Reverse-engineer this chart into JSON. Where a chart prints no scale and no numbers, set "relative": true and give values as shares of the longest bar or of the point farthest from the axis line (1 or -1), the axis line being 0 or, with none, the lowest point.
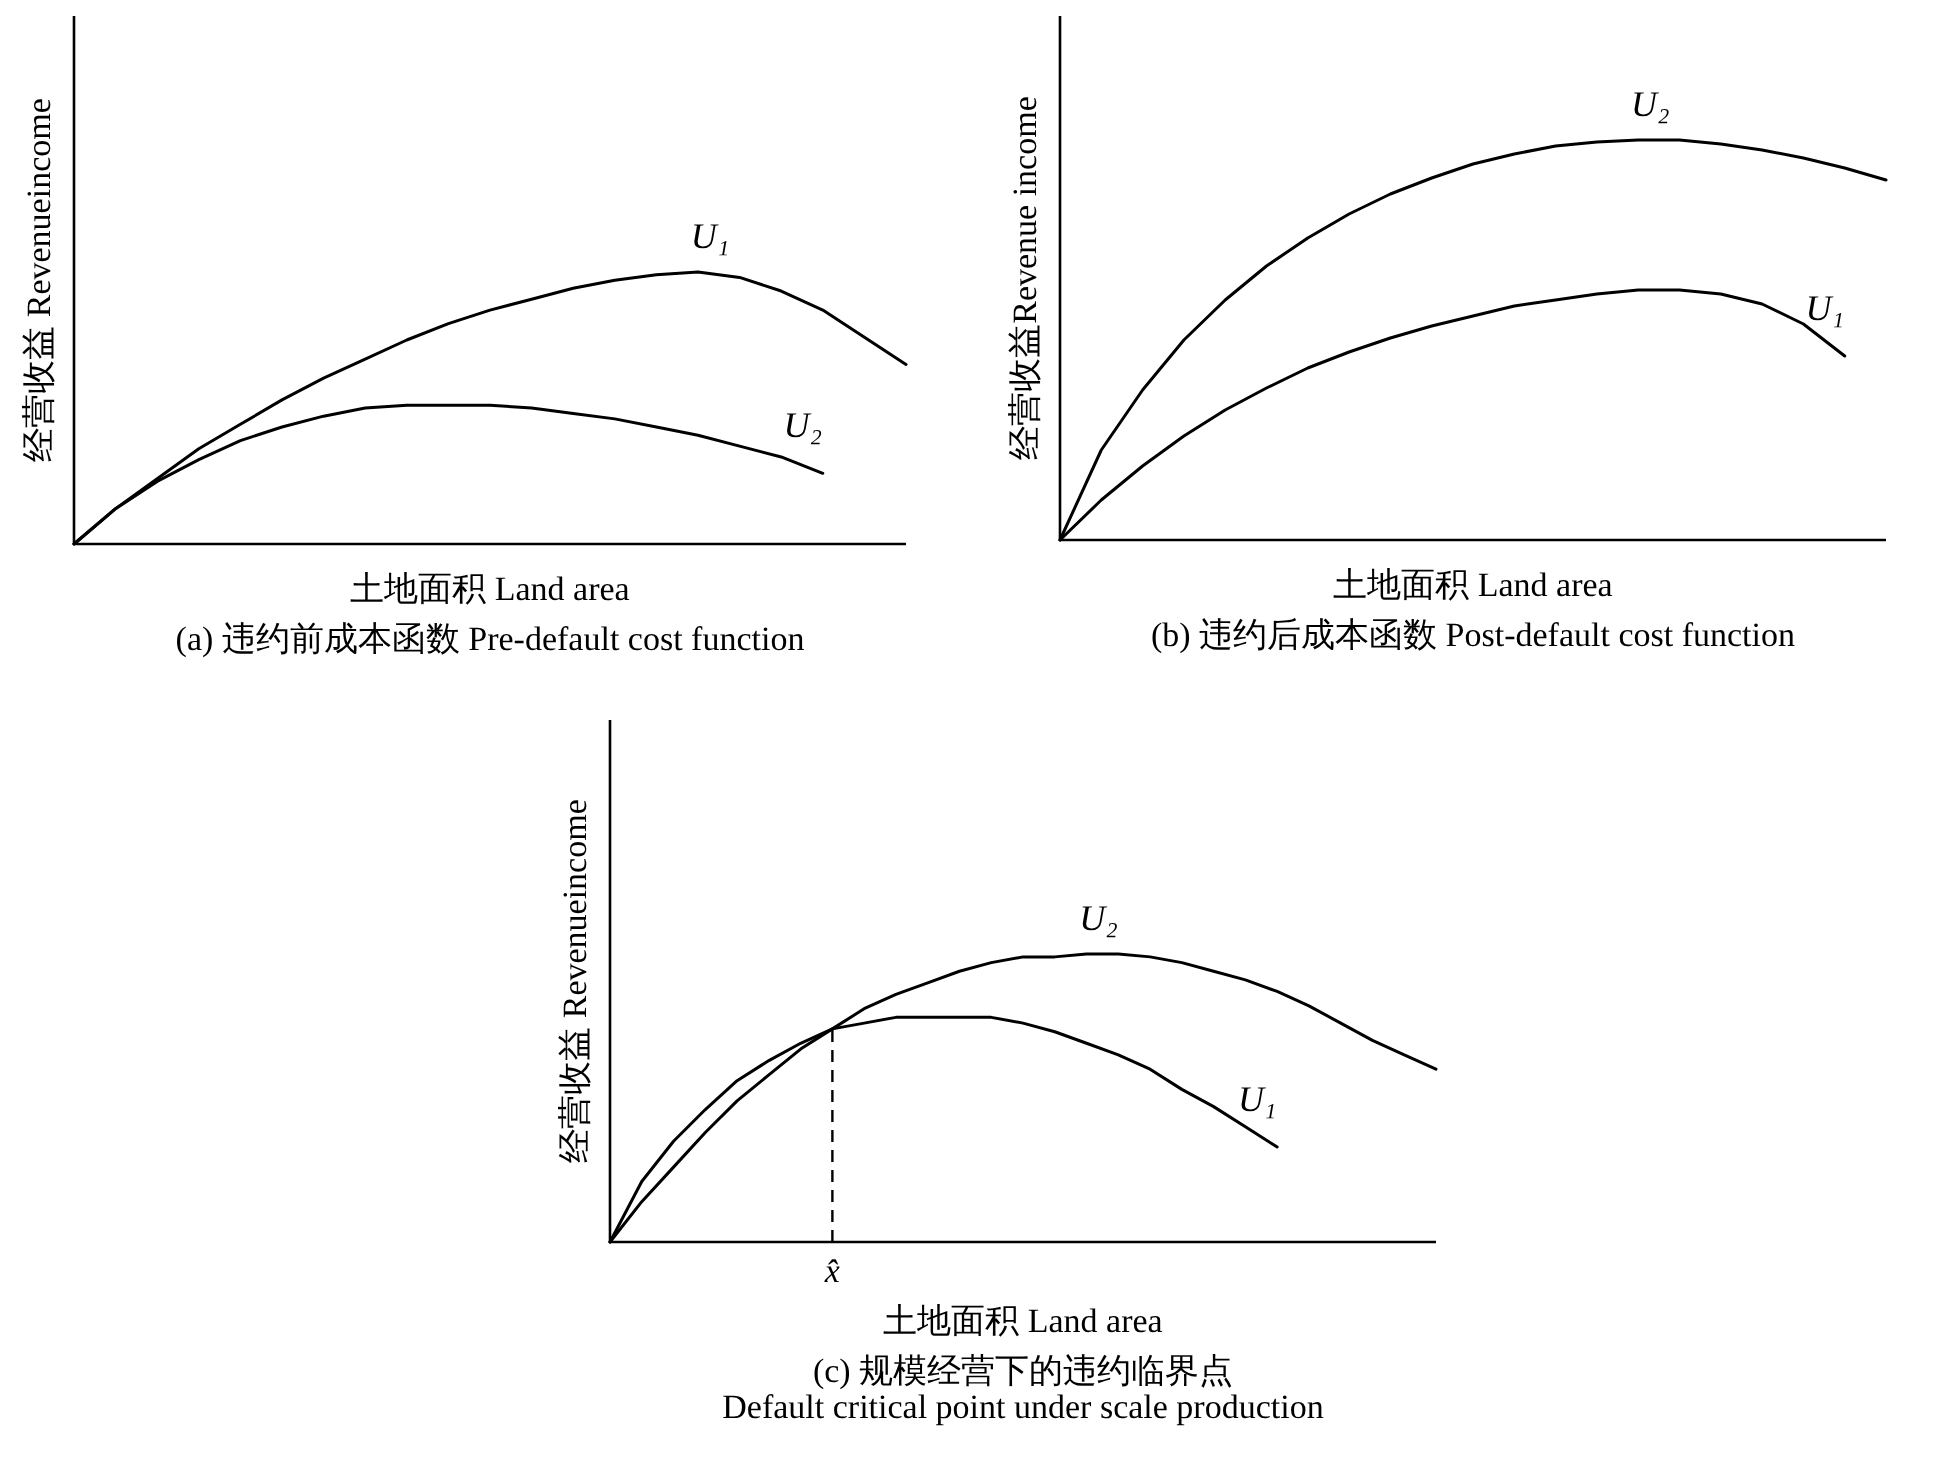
{
  "chart_data": [
    {
      "type": "line",
      "relative": true,
      "title": "(a) 违约前成本函数 Pre-default cost function",
      "xlabel": "土地面积 Land area",
      "ylabel": "经营收益 Revenueincome",
      "categories": [
        null,
        null,
        null,
        null,
        null,
        null,
        null,
        null,
        null,
        null,
        null,
        null,
        null,
        null,
        null,
        null,
        null,
        null,
        null,
        null,
        null
      ],
      "series": [
        {
          "name": "U₁",
          "color": "#000000",
          "values": [
            0,
            0.13,
            0.24,
            0.35,
            0.44,
            0.53,
            0.61,
            0.68,
            0.75,
            0.81,
            0.86,
            0.9,
            0.94,
            0.97,
            0.99,
            1,
            0.98,
            0.93,
            0.86,
            0.76,
            0.66
          ]
        },
        {
          "name": "U₂",
          "color": "#000000",
          "values": [
            0,
            0.13,
            0.23,
            0.31,
            0.38,
            0.43,
            0.47,
            0.5,
            0.51,
            0.51,
            0.51,
            0.5,
            0.48,
            0.46,
            0.43,
            0.4,
            0.36,
            0.32,
            0.26,
            null,
            null
          ]
        }
      ]
    },
    {
      "type": "line",
      "relative": true,
      "title": "(b) 违约后成本函数 Post-default cost function",
      "xlabel": "土地面积 Land area",
      "ylabel": "经营收益Revenue income",
      "categories": [
        null,
        null,
        null,
        null,
        null,
        null,
        null,
        null,
        null,
        null,
        null,
        null,
        null,
        null,
        null,
        null,
        null,
        null,
        null,
        null,
        null
      ],
      "series": [
        {
          "name": "U₂",
          "color": "#000000",
          "values": [
            0,
            0.225,
            0.375,
            0.5,
            0.6,
            0.685,
            0.755,
            0.815,
            0.865,
            0.905,
            0.94,
            0.965,
            0.985,
            0.995,
            1,
            1,
            0.99,
            0.975,
            0.955,
            0.93,
            0.9
          ]
        },
        {
          "name": "U₁",
          "color": "#000000",
          "values": [
            0,
            0.1,
            0.185,
            0.26,
            0.325,
            0.38,
            0.43,
            0.47,
            0.505,
            0.535,
            0.56,
            0.585,
            0.6,
            0.615,
            0.625,
            0.625,
            0.615,
            0.59,
            0.54,
            0.46,
            null
          ]
        }
      ]
    },
    {
      "type": "line",
      "relative": true,
      "title": "(c) 规模经营下的违约临界点",
      "subtitle": "Default critical point under scale production",
      "xlabel": "土地面积 Land area",
      "ylabel": "经营收益 Revenueincome",
      "categories": [
        null,
        null,
        null,
        null,
        null,
        null,
        null,
        null,
        null,
        null,
        null,
        null,
        null,
        null,
        null,
        null,
        null,
        null,
        null,
        null,
        null,
        null,
        null,
        null,
        null,
        null,
        null
      ],
      "series": [
        {
          "name": "U₂",
          "color": "#000000",
          "values": [
            0,
            0.14,
            0.26,
            0.38,
            0.49,
            0.58,
            0.67,
            0.74,
            0.81,
            0.86,
            0.9,
            0.94,
            0.97,
            0.99,
            0.99,
            1,
            1,
            0.99,
            0.97,
            0.94,
            0.91,
            0.87,
            0.82,
            0.76,
            0.7,
            0.65,
            0.6
          ]
        },
        {
          "name": "U₁",
          "color": "#000000",
          "values": [
            0,
            0.21,
            0.35,
            0.46,
            0.56,
            0.63,
            0.69,
            0.74,
            0.76,
            0.78,
            0.78,
            0.78,
            0.78,
            0.76,
            0.73,
            0.69,
            0.65,
            0.6,
            0.53,
            0.47,
            0.4,
            0.33,
            null,
            null,
            null,
            null,
            null
          ]
        }
      ],
      "annotations": [
        "x̂"
      ]
    }
  ]
}
